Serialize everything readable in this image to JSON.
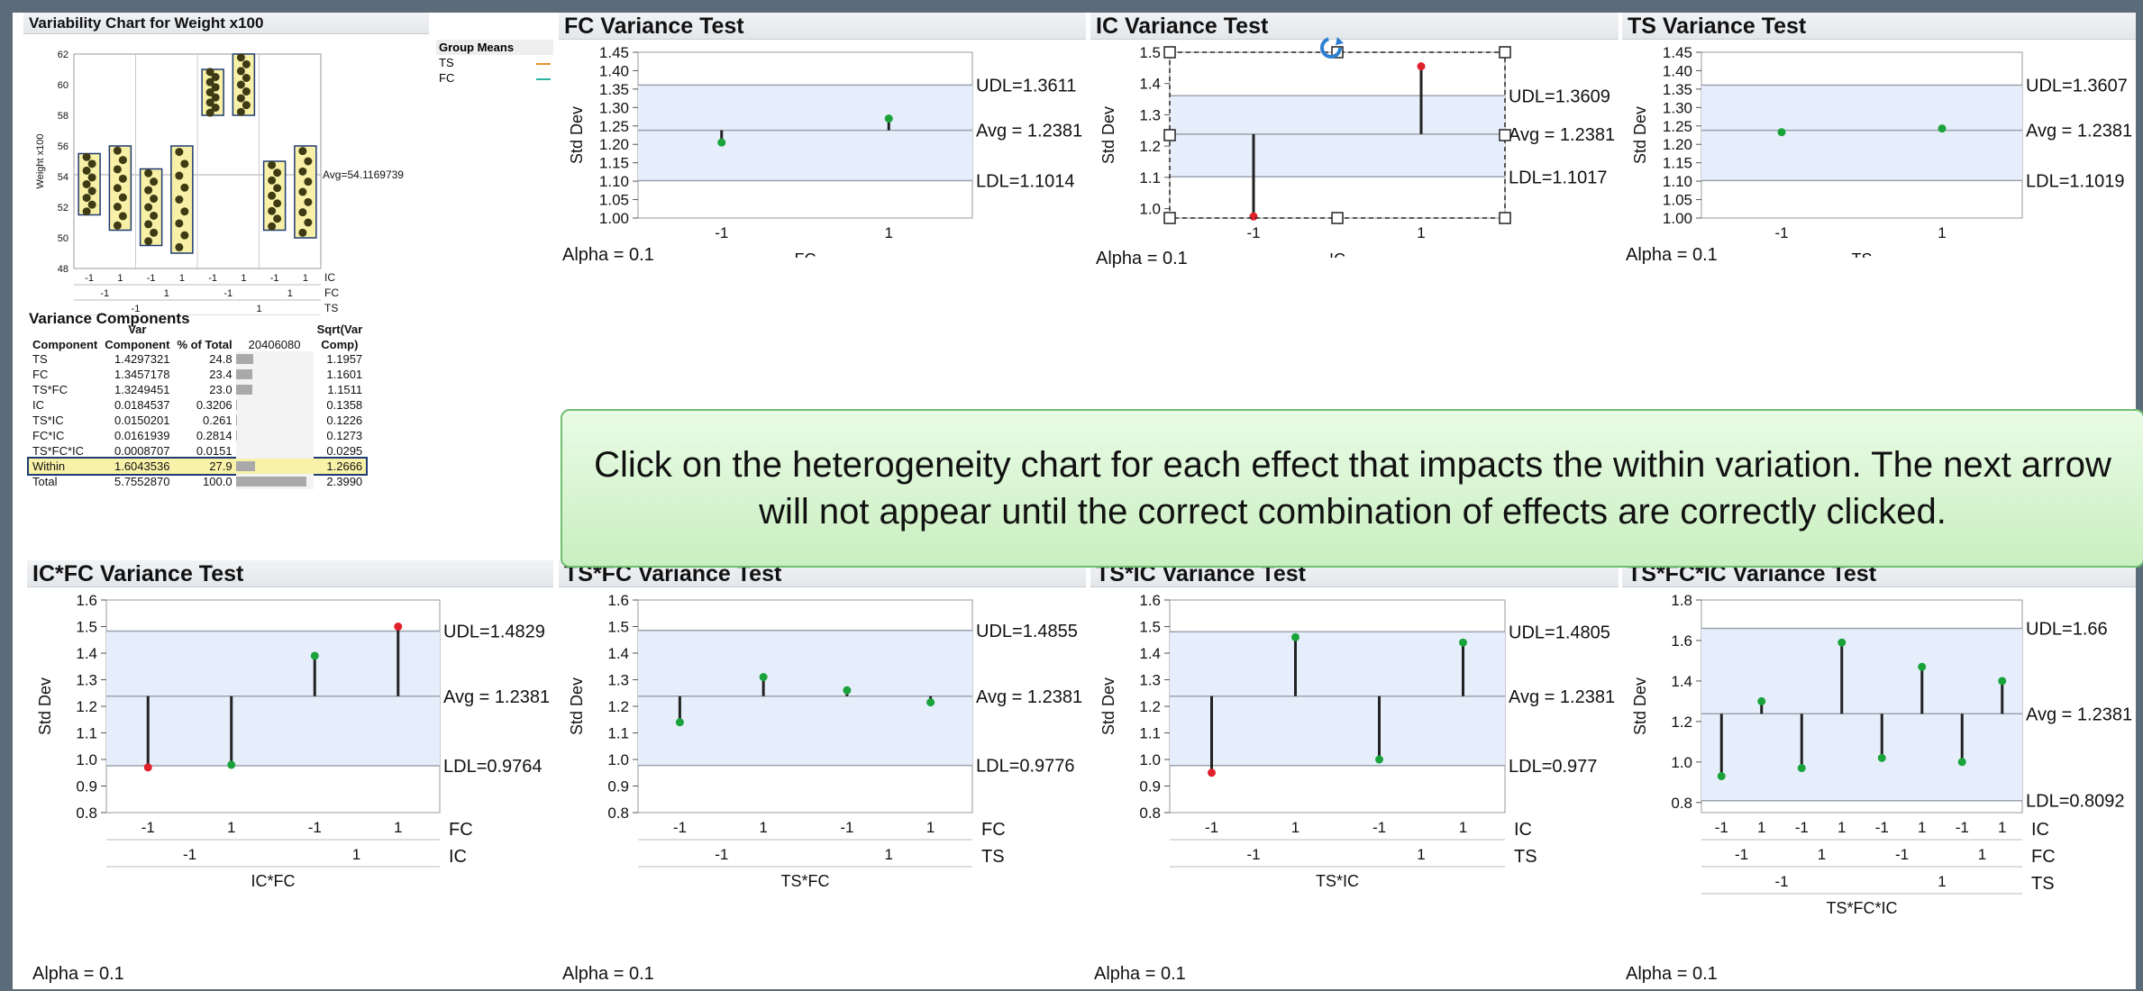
{
  "variability": {
    "title": "Variability Chart for Weight x100",
    "ylabel": "Weight x100",
    "avg_label": "Avg=54.1169739",
    "legend_title": "Group Means",
    "legend": [
      {
        "name": "TS",
        "color": "#e8912e"
      },
      {
        "name": "FC",
        "color": "#2bb3a3"
      }
    ],
    "y_ticks": [
      "62",
      "60",
      "58",
      "56",
      "54",
      "52",
      "50",
      "48"
    ],
    "row_labels": [
      "IC",
      "FC",
      "TS"
    ],
    "ic_levels": [
      "-1",
      "1",
      "-1",
      "1",
      "-1",
      "1",
      "-1",
      "1"
    ],
    "fc_levels": [
      "-1",
      "1",
      "-1",
      "1"
    ],
    "ts_levels": [
      "-1",
      "1"
    ]
  },
  "variance_components": {
    "title": "Variance Components",
    "headers": {
      "component": "Component",
      "var_comp_top": "Var",
      "var_comp": "Component",
      "pct": "% of Total",
      "scale": "20406080",
      "sqrt_top": "Sqrt(Var",
      "sqrt": "Comp)"
    },
    "rows": [
      {
        "component": "TS",
        "var": "1.4297321",
        "pct": "24.8",
        "pct_num": 24.8,
        "sqrt": "1.1957"
      },
      {
        "component": "FC",
        "var": "1.3457178",
        "pct": "23.4",
        "pct_num": 23.4,
        "sqrt": "1.1601"
      },
      {
        "component": "TS*FC",
        "var": "1.3249451",
        "pct": "23.0",
        "pct_num": 23.0,
        "sqrt": "1.1511"
      },
      {
        "component": "IC",
        "var": "0.0184537",
        "pct": "0.3206",
        "pct_num": 0.3206,
        "sqrt": "0.1358"
      },
      {
        "component": "TS*IC",
        "var": "0.0150201",
        "pct": "0.261",
        "pct_num": 0.261,
        "sqrt": "0.1226"
      },
      {
        "component": "FC*IC",
        "var": "0.0161939",
        "pct": "0.2814",
        "pct_num": 0.2814,
        "sqrt": "0.1273"
      },
      {
        "component": "TS*FC*IC",
        "var": "0.0008707",
        "pct": "0.0151",
        "pct_num": 0.0151,
        "sqrt": "0.0295"
      },
      {
        "component": "Within",
        "var": "1.6043536",
        "pct": "27.9",
        "pct_num": 27.9,
        "sqrt": "1.2666"
      },
      {
        "component": "Total",
        "var": "5.7552870",
        "pct": "100.0",
        "pct_num": 100,
        "sqrt": "2.3990"
      }
    ]
  },
  "instruction": "Click on the heterogeneity chart for each effect that impacts the within variation.  The next arrow will not appear until the correct combination of effects are correctly clicked.",
  "colors": {
    "band": "#e6eefc",
    "ok": "#1aa33a",
    "out": "#e0202a",
    "stem": "#222222"
  },
  "chart_data": [
    {
      "type": "scatter",
      "title": "FC Variance Test",
      "ylabel": "Std Dev",
      "xlabel": "FC",
      "alpha": "Alpha = 0.1",
      "ylim": [
        1.0,
        1.45
      ],
      "yticks": [
        "1.45",
        "1.40",
        "1.35",
        "1.30",
        "1.25",
        "1.20",
        "1.15",
        "1.10",
        "1.05",
        "1.00"
      ],
      "udl": 1.3611,
      "avg": 1.2381,
      "ldl": 1.1014,
      "udl_label": "UDL=1.3611",
      "avg_label": "Avg = 1.2381",
      "ldl_label": "LDL=1.1014",
      "rows": [
        [
          "-1",
          "1"
        ]
      ],
      "row_names": [],
      "values": [
        1.205,
        1.27
      ],
      "status": [
        "ok",
        "ok"
      ]
    },
    {
      "type": "scatter",
      "title": "IC Variance Test",
      "ylabel": "Std Dev",
      "xlabel": "IC",
      "alpha": "Alpha = 0.1",
      "ylim": [
        0.97,
        1.5
      ],
      "yticks": [
        "1.5",
        "1.4",
        "1.3",
        "1.2",
        "1.1",
        "1.0"
      ],
      "ytick_vals": [
        1.5,
        1.4,
        1.3,
        1.2,
        1.1,
        1.0
      ],
      "udl": 1.3609,
      "avg": 1.2381,
      "ldl": 1.1017,
      "udl_label": "UDL=1.3609",
      "avg_label": "Avg = 1.2381",
      "ldl_label": "LDL=1.1017",
      "rows": [
        [
          "-1",
          "1"
        ]
      ],
      "row_names": [],
      "values": [
        0.975,
        1.455
      ],
      "status": [
        "out",
        "out"
      ],
      "selected": true
    },
    {
      "type": "scatter",
      "title": "TS Variance Test",
      "ylabel": "Std Dev",
      "xlabel": "TS",
      "alpha": "Alpha = 0.1",
      "ylim": [
        1.0,
        1.45
      ],
      "yticks": [
        "1.45",
        "1.40",
        "1.35",
        "1.30",
        "1.25",
        "1.20",
        "1.15",
        "1.10",
        "1.05",
        "1.00"
      ],
      "udl": 1.3607,
      "avg": 1.2381,
      "ldl": 1.1019,
      "udl_label": "UDL=1.3607",
      "avg_label": "Avg = 1.2381",
      "ldl_label": "LDL=1.1019",
      "rows": [
        [
          "-1",
          "1"
        ]
      ],
      "row_names": [],
      "values": [
        1.233,
        1.243
      ],
      "status": [
        "ok",
        "ok"
      ]
    },
    {
      "type": "scatter",
      "title": "IC*FC Variance Test",
      "ylabel": "Std Dev",
      "xlabel": "IC*FC",
      "alpha": "Alpha = 0.1",
      "ylim": [
        0.8,
        1.6
      ],
      "yticks": [
        "1.6",
        "1.5",
        "1.4",
        "1.3",
        "1.2",
        "1.1",
        "1.0",
        "0.9",
        "0.8"
      ],
      "udl": 1.4829,
      "avg": 1.2381,
      "ldl": 0.9764,
      "udl_label": "UDL=1.4829",
      "avg_label": "Avg = 1.2381",
      "ldl_label": "LDL=0.9764",
      "rows": [
        [
          "-1",
          "1",
          "-1",
          "1"
        ],
        [
          "-1",
          "1"
        ]
      ],
      "row_names": [
        "FC",
        "IC"
      ],
      "values": [
        0.97,
        0.98,
        1.39,
        1.5
      ],
      "status": [
        "out",
        "ok",
        "ok",
        "out"
      ]
    },
    {
      "type": "scatter",
      "title": "TS*FC Variance Test",
      "ylabel": "Std Dev",
      "xlabel": "TS*FC",
      "alpha": "Alpha = 0.1",
      "ylim": [
        0.8,
        1.6
      ],
      "yticks": [
        "1.6",
        "1.5",
        "1.4",
        "1.3",
        "1.2",
        "1.1",
        "1.0",
        "0.9",
        "0.8"
      ],
      "udl": 1.4855,
      "avg": 1.2381,
      "ldl": 0.9776,
      "udl_label": "UDL=1.4855",
      "avg_label": "Avg = 1.2381",
      "ldl_label": "LDL=0.9776",
      "rows": [
        [
          "-1",
          "1",
          "-1",
          "1"
        ],
        [
          "-1",
          "1"
        ]
      ],
      "row_names": [
        "FC",
        "TS"
      ],
      "values": [
        1.14,
        1.31,
        1.26,
        1.215
      ],
      "status": [
        "ok",
        "ok",
        "ok",
        "ok"
      ]
    },
    {
      "type": "scatter",
      "title": "TS*IC Variance Test",
      "ylabel": "Std Dev",
      "xlabel": "TS*IC",
      "alpha": "Alpha = 0.1",
      "ylim": [
        0.8,
        1.6
      ],
      "yticks": [
        "1.6",
        "1.5",
        "1.4",
        "1.3",
        "1.2",
        "1.1",
        "1.0",
        "0.9",
        "0.8"
      ],
      "udl": 1.4805,
      "avg": 1.2381,
      "ldl": 0.977,
      "udl_label": "UDL=1.4805",
      "avg_label": "Avg = 1.2381",
      "ldl_label": "LDL=0.977",
      "rows": [
        [
          "-1",
          "1",
          "-1",
          "1"
        ],
        [
          "-1",
          "1"
        ]
      ],
      "row_names": [
        "IC",
        "TS"
      ],
      "values": [
        0.95,
        1.46,
        1.0,
        1.44
      ],
      "status": [
        "out",
        "ok",
        "ok",
        "ok"
      ]
    },
    {
      "type": "scatter",
      "title": "TS*FC*IC Variance Test",
      "ylabel": "Std Dev",
      "xlabel": "TS*FC*IC",
      "alpha": "Alpha = 0.1",
      "ylim": [
        0.75,
        1.8
      ],
      "yticks": [
        "1.8",
        "1.6",
        "1.4",
        "1.2",
        "1.0",
        "0.8"
      ],
      "ytick_vals": [
        1.8,
        1.6,
        1.4,
        1.2,
        1.0,
        0.8
      ],
      "udl": 1.66,
      "avg": 1.2381,
      "ldl": 0.8092,
      "udl_label": "UDL=1.66",
      "avg_label": "Avg = 1.2381",
      "ldl_label": "LDL=0.8092",
      "rows": [
        [
          "-1",
          "1",
          "-1",
          "1",
          "-1",
          "1",
          "-1",
          "1"
        ],
        [
          "-1",
          "1",
          "-1",
          "1"
        ],
        [
          "-1",
          "1"
        ]
      ],
      "row_names": [
        "IC",
        "FC",
        "TS"
      ],
      "values": [
        0.93,
        1.3,
        0.97,
        1.59,
        1.02,
        1.47,
        1.0,
        1.4
      ],
      "status": [
        "ok",
        "ok",
        "ok",
        "ok",
        "ok",
        "ok",
        "ok",
        "ok"
      ]
    }
  ]
}
